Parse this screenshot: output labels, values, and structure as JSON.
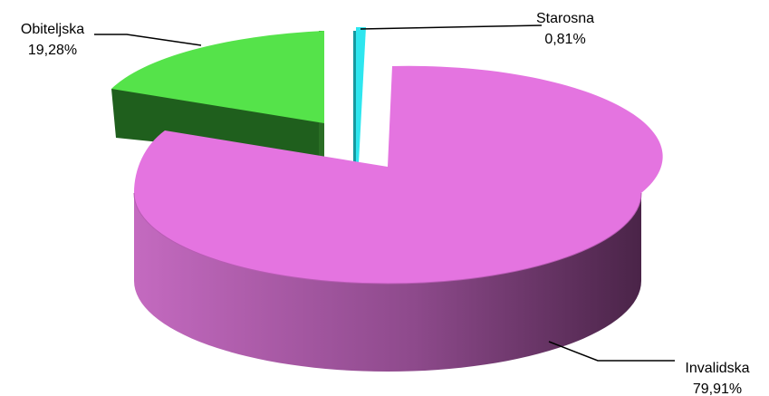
{
  "chart_data": {
    "type": "pie",
    "style": "3d-exploded",
    "slices": [
      {
        "label": "Starosna",
        "value": 0.81,
        "value_label": "0,81%",
        "color": "#2ee6ef",
        "side_color": "#159aa0"
      },
      {
        "label": "Invalidska",
        "value": 79.91,
        "value_label": "79,91%",
        "color": "#e474e0",
        "side_color": "#8a3a88"
      },
      {
        "label": "Obiteljska",
        "value": 19.28,
        "value_label": "19,28%",
        "color": "#55e34a",
        "side_color": "#1f5f1d"
      }
    ],
    "legend": "none",
    "data_labels": "outside-with-leader-lines"
  }
}
